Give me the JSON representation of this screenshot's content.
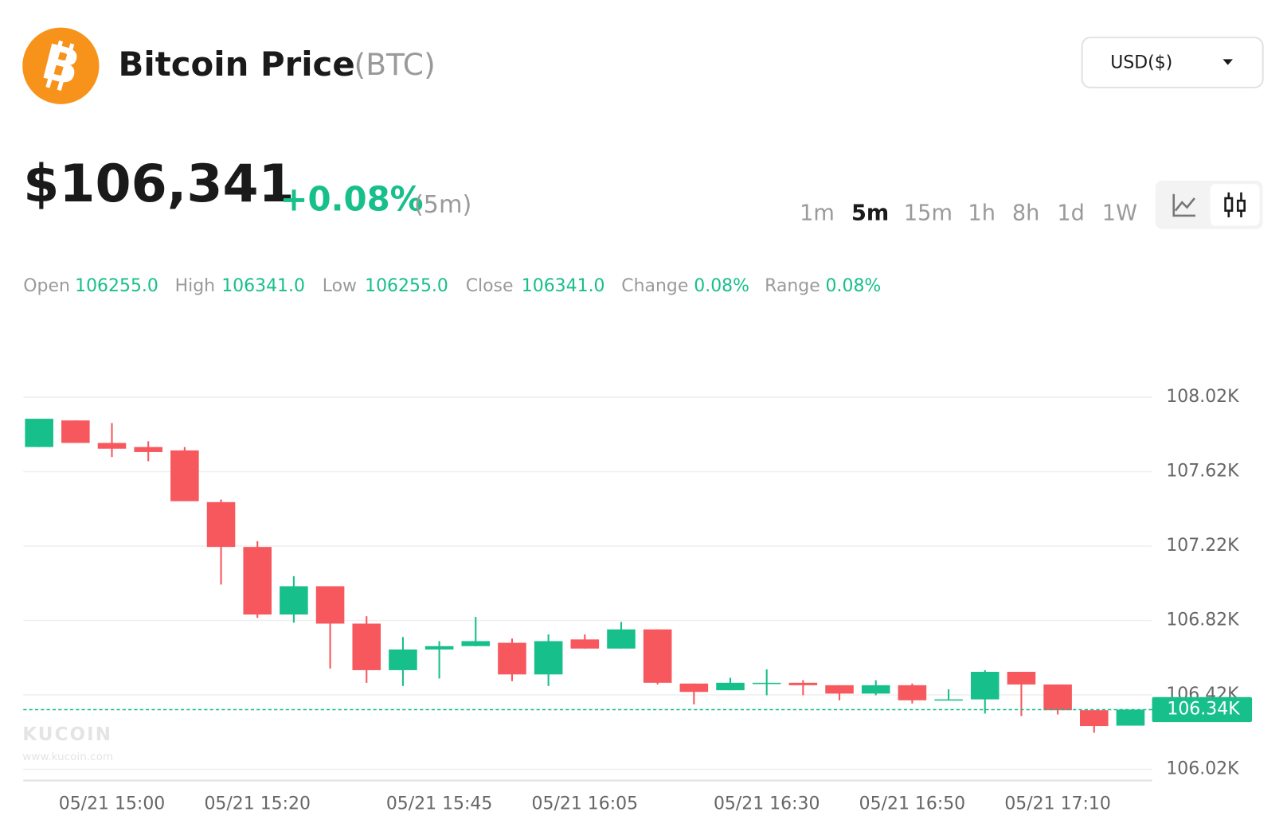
{
  "header": {
    "title": "Bitcoin Price",
    "symbol": "(BTC)",
    "currency": "USD($)",
    "price": "$106,341",
    "change": "+0.08%",
    "change_period": "(5m)",
    "intervals": [
      "1m",
      "5m",
      "15m",
      "1h",
      "8h",
      "1d",
      "1W"
    ],
    "active_interval": "5m"
  },
  "stats": [
    {
      "label": "Open",
      "value": "106255.0"
    },
    {
      "label": "High",
      "value": "106341.0"
    },
    {
      "label": "Low",
      "value": "106255.0"
    },
    {
      "label": "Close",
      "value": "106341.0"
    },
    {
      "label": "Change",
      "value": "0.08%"
    },
    {
      "label": "Range",
      "value": "0.08%"
    }
  ],
  "watermark": {
    "brand": "KUCOIN",
    "url": "www.kucoin.com"
  },
  "chart_data": {
    "type": "candlestick",
    "categories": [
      null,
      null,
      "05/21 15:00",
      null,
      null,
      null,
      "05/21 15:20",
      null,
      null,
      null,
      null,
      "05/21 15:45",
      null,
      null,
      null,
      "05/21 16:05",
      null,
      null,
      null,
      null,
      "05/21 16:30",
      null,
      null,
      null,
      "05/21 16:50",
      null,
      null,
      null,
      "05/21 17:10",
      null,
      null
    ],
    "open": [
      107752,
      107895,
      107774,
      107752,
      107734,
      107456,
      107215,
      106852,
      107004,
      106803,
      106553,
      106664,
      106682,
      106700,
      106530,
      106718,
      106669,
      106772,
      106481,
      106445,
      106481,
      106485,
      106472,
      106427,
      106472,
      106391,
      106396,
      106544,
      106476,
      106338,
      106255
    ],
    "high": [
      107904,
      107895,
      107881,
      107783,
      107752,
      107470,
      107246,
      107058,
      107004,
      106843,
      106731,
      106709,
      106839,
      106723,
      106745,
      106745,
      106812,
      106772,
      106481,
      106512,
      106557,
      106499,
      106472,
      106499,
      106481,
      106450,
      106553,
      106544,
      106476,
      106338,
      106341
    ],
    "low": [
      107752,
      107774,
      107698,
      107676,
      107461,
      107013,
      106834,
      106808,
      106562,
      106485,
      106468,
      106508,
      106682,
      106494,
      106468,
      106669,
      106669,
      106476,
      106369,
      106445,
      106418,
      106418,
      106391,
      106418,
      106374,
      106391,
      106320,
      106306,
      106315,
      106217,
      106255
    ],
    "close": [
      107904,
      107774,
      107743,
      107725,
      107461,
      107215,
      106852,
      107004,
      106803,
      106553,
      106664,
      106682,
      106709,
      106530,
      106709,
      106669,
      106772,
      106485,
      106436,
      106485,
      106485,
      106472,
      106427,
      106472,
      106391,
      106396,
      106544,
      106476,
      106338,
      106253,
      106341
    ],
    "up_color": "#17bf8b",
    "down_color": "#f6585d",
    "ylim": [
      105960,
      108100
    ],
    "yticks": [
      {
        "value": 108020,
        "label": "108.02K"
      },
      {
        "value": 107620,
        "label": "107.62K"
      },
      {
        "value": 107220,
        "label": "107.22K"
      },
      {
        "value": 106820,
        "label": "106.82K"
      },
      {
        "value": 106420,
        "label": "106.42K"
      },
      {
        "value": 106020,
        "label": "106.02K"
      }
    ],
    "grid": true,
    "last_price": 106341,
    "last_price_label": "106.34K"
  }
}
